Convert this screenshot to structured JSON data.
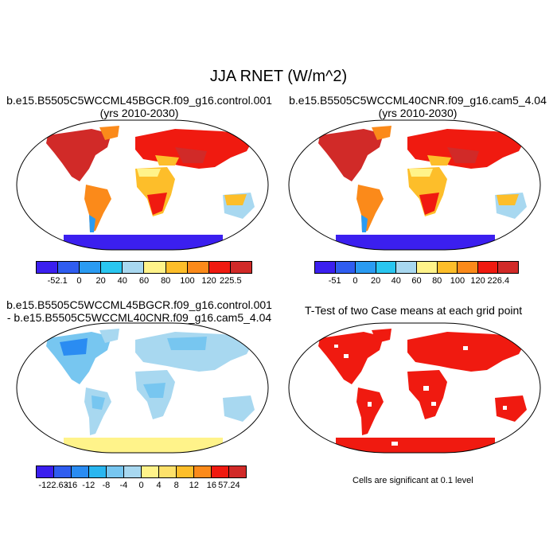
{
  "figure": {
    "main_title": "JJA RNET (W/m^2)"
  },
  "panels": {
    "p1": {
      "title_line1": "b.e15.B5505C5WCCML45BGCR.f09_g16.control.001",
      "title_line2": "(yrs 2010-2030)",
      "colorbar_ticks": [
        "-52.1",
        "0",
        "20",
        "40",
        "60",
        "80",
        "100",
        "120",
        "225.5"
      ]
    },
    "p2": {
      "title_line1": "b.e15.B5505C5WCCML40CNR.f09_g16.cam5_4.04",
      "title_line2": "(yrs 2010-2030)",
      "colorbar_ticks": [
        "-51",
        "0",
        "20",
        "40",
        "60",
        "80",
        "100",
        "120",
        "226.4"
      ]
    },
    "p3": {
      "title_line1": "b.e15.B5505C5WCCML45BGCR.f09_g16.control.001",
      "title_line2": "- b.e15.B5505C5WCCML40CNR.f09_g16.cam5_4.04",
      "colorbar_ticks": [
        "-122.63",
        "-16",
        "-12",
        "-8",
        "-4",
        "0",
        "4",
        "8",
        "12",
        "16",
        "57.24"
      ]
    },
    "p4": {
      "title": "T-Test of two Case means at each grid point",
      "note": "Cells are significant at 0.1 level"
    }
  },
  "colors": {
    "abs_scale": [
      "#3b1fef",
      "#2f5df0",
      "#2a9bf2",
      "#29c6f0",
      "#a8d8f0",
      "#fff38a",
      "#fdbe2a",
      "#fb8a1a",
      "#f01a10",
      "#d12a28"
    ],
    "diff_scale": [
      "#3b1fef",
      "#2f5df0",
      "#2a8cf2",
      "#29b6f0",
      "#77c6f0",
      "#a8d8f0",
      "#fff38a",
      "#fde16a",
      "#fdbe2a",
      "#fb8a1a",
      "#f01a10",
      "#d12a28"
    ],
    "sig": "#f01a10"
  }
}
